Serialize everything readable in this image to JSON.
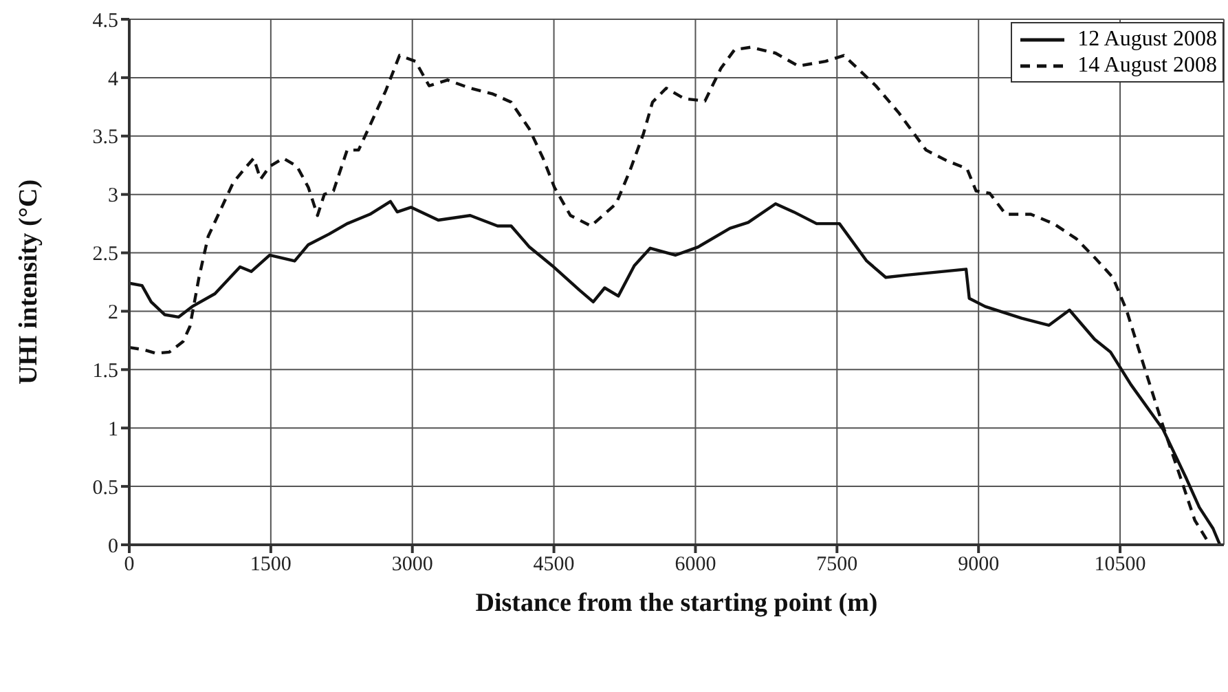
{
  "chart_data": {
    "type": "line",
    "xlabel": "Distance from the starting point (m)",
    "ylabel": "UHI intensity (°C)",
    "xlim": [
      0,
      11600
    ],
    "xticks": [
      0,
      1500,
      3000,
      4500,
      6000,
      7500,
      9000,
      10500
    ],
    "ylim": [
      0,
      4.5
    ],
    "yticks": [
      0,
      0.5,
      1,
      1.5,
      2,
      2.5,
      3,
      3.5,
      4,
      4.5
    ],
    "grid": true,
    "legend": "top right",
    "marker": "none",
    "series": [
      {
        "name": "12 August 2008",
        "color": "#111111",
        "line_style": "solid",
        "x": [
          0,
          135,
          232,
          377,
          522,
          667,
          908,
          1174,
          1294,
          1488,
          1753,
          1898,
          2116,
          2309,
          2550,
          2768,
          2840,
          2985,
          3275,
          3613,
          3903,
          4047,
          4240,
          4482,
          4772,
          4917,
          5038,
          5183,
          5352,
          5521,
          5787,
          6028,
          6366,
          6559,
          6849,
          7042,
          7284,
          7526,
          7815,
          8017,
          8239,
          8868,
          8902,
          9071,
          9457,
          9747,
          9964,
          10230,
          10399,
          10616,
          10954,
          11195,
          11340,
          11485,
          11558
        ],
        "values": [
          2.24,
          2.22,
          2.08,
          1.97,
          1.95,
          2.04,
          2.15,
          2.38,
          2.34,
          2.48,
          2.43,
          2.57,
          2.66,
          2.75,
          2.83,
          2.94,
          2.85,
          2.89,
          2.78,
          2.82,
          2.73,
          2.73,
          2.55,
          2.39,
          2.18,
          2.08,
          2.2,
          2.13,
          2.39,
          2.54,
          2.48,
          2.55,
          2.71,
          2.76,
          2.92,
          2.85,
          2.75,
          2.75,
          2.43,
          2.29,
          2.31,
          2.36,
          2.11,
          2.04,
          1.94,
          1.88,
          2.01,
          1.76,
          1.65,
          1.37,
          0.99,
          0.58,
          0.32,
          0.14,
          0
        ]
      },
      {
        "name": "14 August 2008",
        "color": "#111111",
        "line_style": "dashed",
        "x": [
          0,
          159,
          280,
          425,
          570,
          643,
          739,
          836,
          980,
          1101,
          1222,
          1319,
          1391,
          1488,
          1633,
          1778,
          1898,
          1995,
          2067,
          2164,
          2309,
          2430,
          2550,
          2719,
          2864,
          3033,
          3178,
          3372,
          3613,
          3854,
          4047,
          4240,
          4385,
          4506,
          4675,
          4893,
          5159,
          5304,
          5449,
          5545,
          5690,
          5883,
          6101,
          6270,
          6415,
          6584,
          6849,
          7090,
          7380,
          7574,
          7912,
          8154,
          8444,
          8661,
          8878,
          8974,
          9119,
          9288,
          9554,
          9795,
          10037,
          10230,
          10423,
          10568,
          10761,
          10954,
          11147,
          11292,
          11437
        ],
        "values": [
          1.69,
          1.67,
          1.64,
          1.65,
          1.74,
          1.87,
          2.29,
          2.64,
          2.89,
          3.1,
          3.22,
          3.31,
          3.13,
          3.24,
          3.31,
          3.24,
          3.06,
          2.82,
          3.0,
          3.03,
          3.38,
          3.38,
          3.59,
          3.89,
          4.19,
          4.14,
          3.93,
          3.98,
          3.91,
          3.86,
          3.79,
          3.56,
          3.31,
          3.06,
          2.82,
          2.73,
          2.92,
          3.2,
          3.52,
          3.79,
          3.91,
          3.82,
          3.8,
          4.08,
          4.24,
          4.26,
          4.21,
          4.1,
          4.14,
          4.19,
          3.93,
          3.7,
          3.38,
          3.29,
          3.22,
          3.03,
          3.01,
          2.83,
          2.83,
          2.75,
          2.62,
          2.46,
          2.29,
          2.01,
          1.51,
          1.02,
          0.56,
          0.21,
          0.02
        ]
      }
    ]
  }
}
